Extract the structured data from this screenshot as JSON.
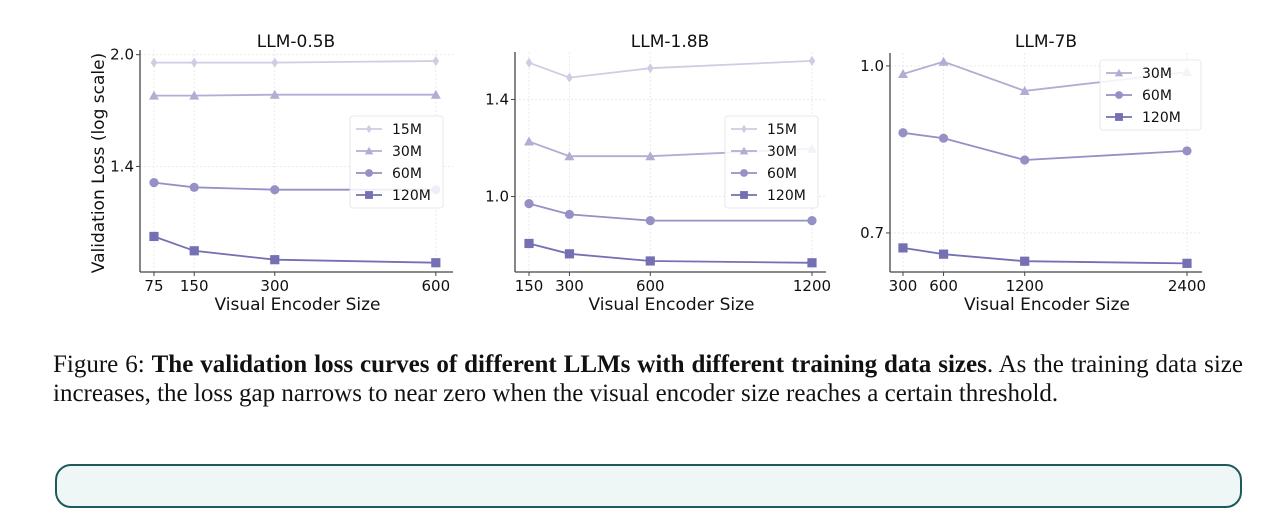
{
  "colors": {
    "15M": "#cfcce4",
    "30M": "#b2aed3",
    "60M": "#9590c5",
    "120M": "#7570b3",
    "grid": "#e6e6e6",
    "axis": "#444444",
    "box_border": "#1f5a5a",
    "box_fill": "#eef6f6"
  },
  "chart_data": [
    {
      "type": "line",
      "title": "LLM-0.5B",
      "xlabel": "Visual Encoder Size",
      "ylabel": "Validation Loss (log scale)",
      "yscale": "log",
      "x": [
        75,
        150,
        300,
        600
      ],
      "xticks": [
        "75",
        "150",
        "300",
        "600"
      ],
      "xlim": [
        49,
        632
      ],
      "yticks": [
        {
          "value": 2.0,
          "label": "2.0"
        },
        {
          "value": 1.4,
          "label": "1.4"
        }
      ],
      "ylim": [
        1.0,
        2.03
      ],
      "grid": true,
      "legend": "center-right",
      "series": [
        {
          "name": "15M",
          "marker": "diamond",
          "values": [
            1.95,
            1.95,
            1.95,
            1.96
          ]
        },
        {
          "name": "30M",
          "marker": "triangle",
          "values": [
            1.755,
            1.755,
            1.76,
            1.76
          ]
        },
        {
          "name": "60M",
          "marker": "circle",
          "values": [
            1.33,
            1.31,
            1.3,
            1.3
          ]
        },
        {
          "name": "120M",
          "marker": "square",
          "values": [
            1.12,
            1.07,
            1.04,
            1.03
          ]
        }
      ]
    },
    {
      "type": "line",
      "title": "LLM-1.8B",
      "xlabel": "Visual Encoder Size",
      "ylabel": "",
      "yscale": "log",
      "x": [
        150,
        300,
        600,
        1200
      ],
      "xticks": [
        "150",
        "300",
        "600",
        "1200"
      ],
      "xlim": [
        98,
        1252
      ],
      "yticks": [
        {
          "value": 1.4,
          "label": "1.4"
        },
        {
          "value": 1.0,
          "label": "1.0"
        }
      ],
      "ylim": [
        0.77,
        1.65
      ],
      "grid": true,
      "legend": "center-right",
      "series": [
        {
          "name": "15M",
          "marker": "diamond",
          "values": [
            1.59,
            1.51,
            1.56,
            1.6
          ]
        },
        {
          "name": "30M",
          "marker": "triangle",
          "values": [
            1.21,
            1.15,
            1.15,
            1.18
          ]
        },
        {
          "name": "60M",
          "marker": "circle",
          "values": [
            0.976,
            0.94,
            0.92,
            0.92
          ]
        },
        {
          "name": "120M",
          "marker": "square",
          "values": [
            0.85,
            0.82,
            0.8,
            0.795
          ]
        }
      ]
    },
    {
      "type": "line",
      "title": "LLM-7B",
      "xlabel": "Visual Encoder Size",
      "ylabel": "",
      "yscale": "log",
      "x": [
        300,
        600,
        1200,
        2400
      ],
      "xticks": [
        "300",
        "600",
        "1200",
        "2400"
      ],
      "xlim": [
        204,
        2511
      ],
      "yticks": [
        {
          "value": 1.0,
          "label": "1.0"
        },
        {
          "value": 0.7,
          "label": "0.7"
        }
      ],
      "ylim": [
        0.644,
        1.028
      ],
      "grid": true,
      "legend": "top-right",
      "series": [
        {
          "name": "30M",
          "marker": "triangle",
          "values": [
            0.983,
            1.009,
            0.948,
            0.987
          ]
        },
        {
          "name": "60M",
          "marker": "circle",
          "values": [
            0.867,
            0.857,
            0.818,
            0.834
          ]
        },
        {
          "name": "120M",
          "marker": "square",
          "values": [
            0.678,
            0.669,
            0.659,
            0.656
          ]
        }
      ]
    }
  ],
  "caption": {
    "label": "Figure 6:",
    "bold": "The validation loss curves of different LLMs with different training data sizes",
    "rest": ". As the training data size increases, the loss gap narrows to near zero when the visual encoder size reaches a certain threshold."
  }
}
